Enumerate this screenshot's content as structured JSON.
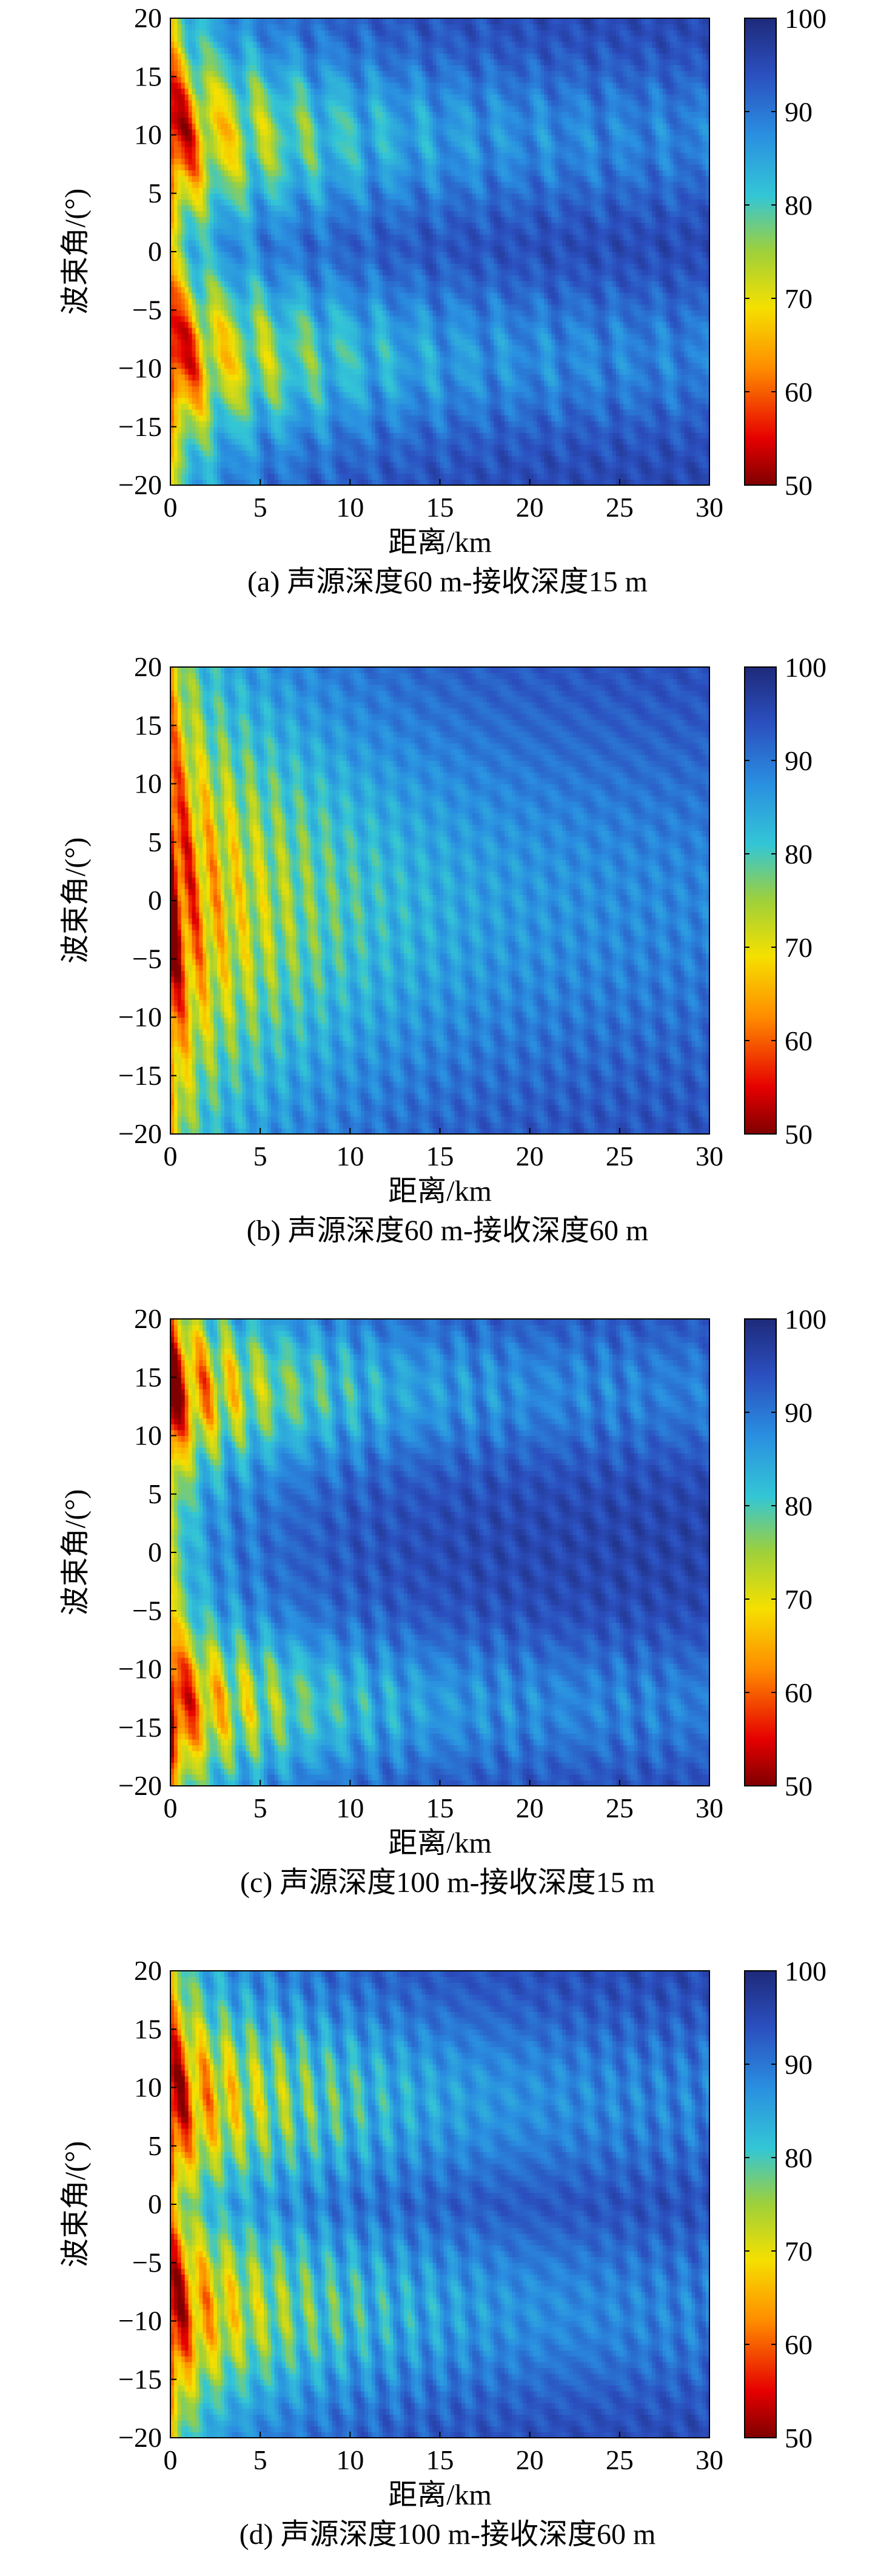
{
  "chart_data": [
    {
      "id": "a",
      "type": "heatmap",
      "title": "",
      "caption": "(a) 声源深度60 m-接收深度15 m",
      "xlabel": "距离/km",
      "ylabel": "波束角/(°)",
      "xlim": [
        0,
        30
      ],
      "ylim": [
        -20,
        20
      ],
      "xticks": [
        0,
        5,
        10,
        15,
        20,
        25,
        30
      ],
      "yticks": [
        -20,
        -15,
        -10,
        -5,
        0,
        5,
        10,
        15,
        20
      ],
      "colorbar": {
        "min": 50,
        "max": 100,
        "ticks": [
          50,
          60,
          70,
          80,
          90,
          100
        ]
      },
      "pattern": {
        "beam_centers": [
          10,
          -9
        ],
        "beam_width": 6.5,
        "near_value": 58,
        "decay_km": 7.5,
        "oscillation_period_km": 2.2
      },
      "grid": false
    },
    {
      "id": "b",
      "type": "heatmap",
      "title": "",
      "caption": "(b) 声源深度60 m-接收深度60 m",
      "xlabel": "距离/km",
      "ylabel": "波束角/(°)",
      "xlim": [
        0,
        30
      ],
      "ylim": [
        -20,
        20
      ],
      "xticks": [
        0,
        5,
        10,
        15,
        20,
        25,
        30
      ],
      "yticks": [
        -20,
        -15,
        -10,
        -5,
        0,
        5,
        10,
        15,
        20
      ],
      "colorbar": {
        "min": 50,
        "max": 100,
        "ticks": [
          50,
          60,
          70,
          80,
          90,
          100
        ]
      },
      "pattern": {
        "beam_centers": [
          0
        ],
        "beam_width": 16,
        "near_value": 57,
        "decay_km": 9,
        "oscillation_period_km": 1.3
      },
      "grid": false
    },
    {
      "id": "c",
      "type": "heatmap",
      "title": "",
      "caption": "(c) 声源深度100 m-接收深度15 m",
      "xlabel": "距离/km",
      "ylabel": "波束角/(°)",
      "xlim": [
        0,
        30
      ],
      "ylim": [
        -20,
        20
      ],
      "xticks": [
        0,
        5,
        10,
        15,
        20,
        25,
        30
      ],
      "yticks": [
        -20,
        -15,
        -10,
        -5,
        0,
        5,
        10,
        15,
        20
      ],
      "colorbar": {
        "min": 50,
        "max": 100,
        "ticks": [
          50,
          60,
          70,
          80,
          90,
          100
        ]
      },
      "pattern": {
        "beam_centers": [
          14,
          -13
        ],
        "beam_width": 6,
        "near_value": 56,
        "decay_km": 7,
        "oscillation_period_km": 1.6
      },
      "grid": false
    },
    {
      "id": "d",
      "type": "heatmap",
      "title": "",
      "caption": "(d) 声源深度100 m-接收深度60 m",
      "xlabel": "距离/km",
      "ylabel": "波束角/(°)",
      "xlim": [
        0,
        30
      ],
      "ylim": [
        -20,
        20
      ],
      "xticks": [
        0,
        5,
        10,
        15,
        20,
        25,
        30
      ],
      "yticks": [
        -20,
        -15,
        -10,
        -5,
        0,
        5,
        10,
        15,
        20
      ],
      "colorbar": {
        "min": 50,
        "max": 100,
        "ticks": [
          50,
          60,
          70,
          80,
          90,
          100
        ]
      },
      "pattern": {
        "beam_centers": [
          9,
          -9
        ],
        "beam_width": 7.5,
        "near_value": 57,
        "decay_km": 8,
        "oscillation_period_km": 1.4
      },
      "grid": false
    }
  ]
}
